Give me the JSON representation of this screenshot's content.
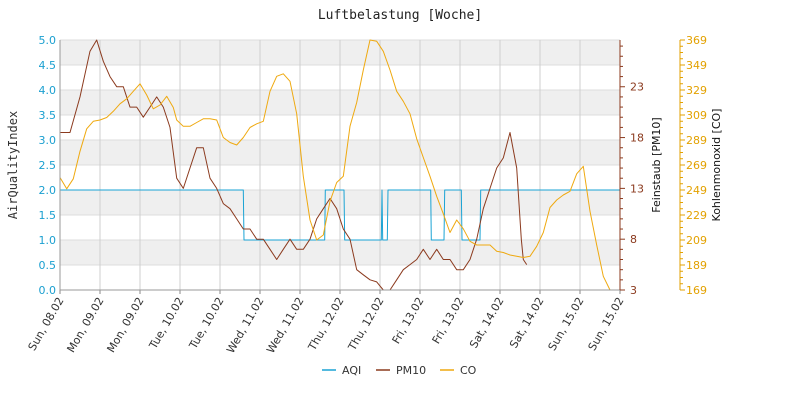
{
  "chart_data": {
    "type": "line",
    "title": "Luftbelastung [Woche]",
    "x_labels": [
      "Sun, 08.02",
      "Mon, 09.02",
      "Mon, 09.02",
      "Tue, 10.02",
      "Tue, 10.02",
      "Wed, 11.02",
      "Wed, 11.02",
      "Thu, 12.02",
      "Thu, 12.02",
      "Fri, 13.02",
      "Fri, 13.02",
      "Sat, 14.02",
      "Sat, 14.02",
      "Sun, 15.02",
      "Sun, 15.02"
    ],
    "grid": true,
    "legend_position": "bottom",
    "axes": {
      "left": {
        "label": "AirQualityIndex",
        "ticks": [
          "0.0",
          "0.5",
          "1.0",
          "1.5",
          "2.0",
          "2.5",
          "3.0",
          "3.5",
          "4.0",
          "4.5",
          "5.0"
        ],
        "range": [
          0,
          5
        ],
        "color": "#1a9fd0"
      },
      "right1": {
        "label": "Feinstaub [PM10]",
        "ticks": [
          "3",
          "8",
          "13",
          "18",
          "23"
        ],
        "range": [
          3,
          27.6
        ],
        "color": "#8b3a1e"
      },
      "right2": {
        "label": "Kohlenmonoxid [CO]",
        "ticks": [
          "169",
          "189",
          "209",
          "229",
          "249",
          "269",
          "289",
          "309",
          "329",
          "349",
          "369"
        ],
        "range": [
          169,
          369
        ],
        "color": "#e3a100"
      }
    },
    "series": [
      {
        "name": "AQI",
        "axis": "left",
        "color": "#1aa3d4",
        "points": [
          [
            0,
            2
          ],
          [
            27.5,
            2
          ],
          [
            27.6,
            1
          ],
          [
            39.7,
            1
          ],
          [
            39.8,
            2
          ],
          [
            42.6,
            2
          ],
          [
            42.7,
            1
          ],
          [
            48.2,
            1
          ],
          [
            48.3,
            2
          ],
          [
            48.4,
            1
          ],
          [
            49.1,
            1
          ],
          [
            49.2,
            2
          ],
          [
            55.6,
            2
          ],
          [
            55.7,
            1
          ],
          [
            57.6,
            1
          ],
          [
            57.7,
            2
          ],
          [
            60.2,
            2
          ],
          [
            60.3,
            1
          ],
          [
            63.0,
            1
          ],
          [
            63.1,
            2
          ],
          [
            70,
            2
          ]
        ]
      },
      {
        "name": "PM10",
        "axis": "right1",
        "color": "#8b3a1e",
        "points": [
          [
            0,
            18.5
          ],
          [
            1.5,
            18.5
          ],
          [
            3,
            22
          ],
          [
            4.5,
            26.5
          ],
          [
            5.5,
            27.6
          ],
          [
            6.5,
            25.5
          ],
          [
            7.5,
            24
          ],
          [
            8.5,
            23
          ],
          [
            9.5,
            23
          ],
          [
            10.5,
            21
          ],
          [
            11.5,
            21
          ],
          [
            12.5,
            20
          ],
          [
            13.5,
            21
          ],
          [
            14.5,
            22
          ],
          [
            15.5,
            21
          ],
          [
            16.5,
            19
          ],
          [
            17.5,
            14
          ],
          [
            18.5,
            13
          ],
          [
            19.5,
            15
          ],
          [
            20.5,
            17
          ],
          [
            21.5,
            17
          ],
          [
            22.5,
            14
          ],
          [
            23.5,
            13
          ],
          [
            24.5,
            11.5
          ],
          [
            25.5,
            11
          ],
          [
            26.5,
            10
          ],
          [
            27.5,
            9
          ],
          [
            28.5,
            9
          ],
          [
            29.5,
            8
          ],
          [
            30.5,
            8
          ],
          [
            31.5,
            7
          ],
          [
            32.5,
            6
          ],
          [
            33.5,
            7
          ],
          [
            34.5,
            8
          ],
          [
            35.5,
            7
          ],
          [
            36.5,
            7
          ],
          [
            37.5,
            8
          ],
          [
            38.5,
            10
          ],
          [
            39.5,
            11
          ],
          [
            40.5,
            12
          ],
          [
            41.5,
            11
          ],
          [
            42.5,
            9
          ],
          [
            43.5,
            8
          ],
          [
            44.5,
            5
          ],
          [
            45.5,
            4.5
          ],
          [
            46.5,
            4
          ],
          [
            47.5,
            3.8
          ],
          [
            48.5,
            3
          ],
          [
            49.5,
            3
          ],
          [
            50.5,
            4
          ],
          [
            51.5,
            5
          ],
          [
            52.5,
            5.5
          ],
          [
            53.5,
            6
          ],
          [
            54.5,
            7
          ],
          [
            55.5,
            6
          ],
          [
            56.5,
            7
          ],
          [
            57.5,
            6
          ],
          [
            58.5,
            6
          ],
          [
            59.5,
            5
          ],
          [
            60.5,
            5
          ],
          [
            61.5,
            6
          ],
          [
            62.5,
            8
          ],
          [
            63.5,
            11
          ],
          [
            64.5,
            13
          ],
          [
            65.5,
            15
          ],
          [
            66.5,
            16
          ],
          [
            67.5,
            18.5
          ],
          [
            68.5,
            15
          ],
          [
            69.2,
            8
          ],
          [
            69.5,
            6
          ],
          [
            70,
            5.5
          ]
        ]
      },
      {
        "name": "CO",
        "axis": "right2",
        "color": "#efa90f",
        "points": [
          [
            0,
            259
          ],
          [
            1,
            250
          ],
          [
            2,
            258
          ],
          [
            3,
            280
          ],
          [
            4,
            298
          ],
          [
            5,
            304
          ],
          [
            6,
            305
          ],
          [
            7,
            307
          ],
          [
            8,
            312
          ],
          [
            9,
            318
          ],
          [
            10,
            322
          ],
          [
            11,
            328
          ],
          [
            12,
            334
          ],
          [
            13,
            325
          ],
          [
            14,
            314
          ],
          [
            15,
            317
          ],
          [
            16,
            324
          ],
          [
            17,
            315
          ],
          [
            17.5,
            305
          ],
          [
            18.5,
            300
          ],
          [
            19.5,
            300
          ],
          [
            20.5,
            303
          ],
          [
            21.5,
            306
          ],
          [
            22.5,
            306
          ],
          [
            23.5,
            305
          ],
          [
            24.5,
            291
          ],
          [
            25.5,
            287
          ],
          [
            26.5,
            285
          ],
          [
            27.5,
            291
          ],
          [
            28.5,
            299
          ],
          [
            29.5,
            302
          ],
          [
            30.5,
            304
          ],
          [
            31.5,
            328
          ],
          [
            32.5,
            340
          ],
          [
            33.5,
            342
          ],
          [
            34.5,
            336
          ],
          [
            35.5,
            310
          ],
          [
            36.5,
            260
          ],
          [
            37.5,
            225
          ],
          [
            38.5,
            209
          ],
          [
            39.5,
            213
          ],
          [
            40.5,
            240
          ],
          [
            41.5,
            255
          ],
          [
            42.5,
            260
          ],
          [
            43.5,
            300
          ],
          [
            44.5,
            319
          ],
          [
            45.5,
            345
          ],
          [
            46.5,
            369
          ],
          [
            47.5,
            368
          ],
          [
            48.5,
            360
          ],
          [
            49.5,
            345
          ],
          [
            50.5,
            328
          ],
          [
            51.5,
            320
          ],
          [
            52.5,
            310
          ],
          [
            53.5,
            290
          ],
          [
            54.5,
            275
          ],
          [
            55.5,
            260
          ],
          [
            56.5,
            244
          ],
          [
            57.5,
            230
          ],
          [
            58.5,
            215
          ],
          [
            59.5,
            225
          ],
          [
            60.5,
            218
          ],
          [
            61.5,
            208
          ],
          [
            62.5,
            205
          ],
          [
            63.5,
            205
          ],
          [
            64.5,
            205
          ],
          [
            65.5,
            200
          ],
          [
            66.5,
            199
          ],
          [
            67.5,
            197
          ],
          [
            68.5,
            196
          ],
          [
            69.5,
            195
          ],
          [
            70.5,
            196
          ],
          [
            71.5,
            204
          ],
          [
            72.5,
            215
          ],
          [
            73.5,
            235
          ],
          [
            74.5,
            241
          ],
          [
            75.5,
            245
          ],
          [
            76.5,
            248
          ],
          [
            77.5,
            262
          ],
          [
            78.5,
            268
          ],
          [
            79.5,
            232
          ],
          [
            80.5,
            205
          ],
          [
            81.5,
            180
          ],
          [
            82.5,
            169
          ]
        ]
      }
    ]
  },
  "legend": {
    "items": [
      {
        "label": "AQI",
        "color": "#1aa3d4"
      },
      {
        "label": "PM10",
        "color": "#8b3a1e"
      },
      {
        "label": "CO",
        "color": "#efa90f"
      }
    ]
  }
}
